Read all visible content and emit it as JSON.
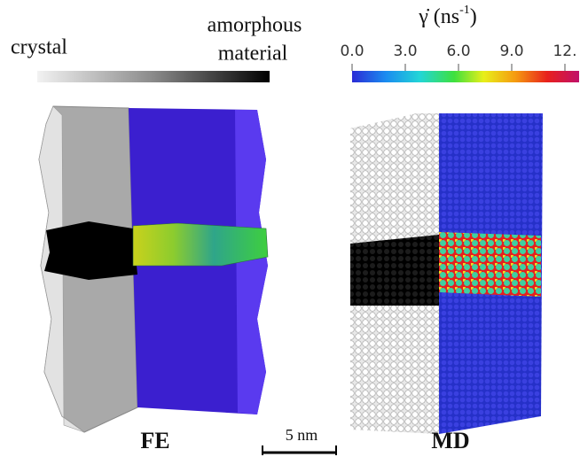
{
  "grayscale_bar": {
    "left_label": "crystal",
    "right_label_line1": "amorphous",
    "right_label_line2": "material"
  },
  "colorbar": {
    "title": "γ̇ (ns",
    "title_superscript": "-1",
    "title_close": ")",
    "tick_labels": [
      "0.0",
      "3.0",
      "6.0",
      "9.0",
      "12."
    ]
  },
  "panels": {
    "left": "FE",
    "right": "MD"
  },
  "scale_bar": "5 nm"
}
